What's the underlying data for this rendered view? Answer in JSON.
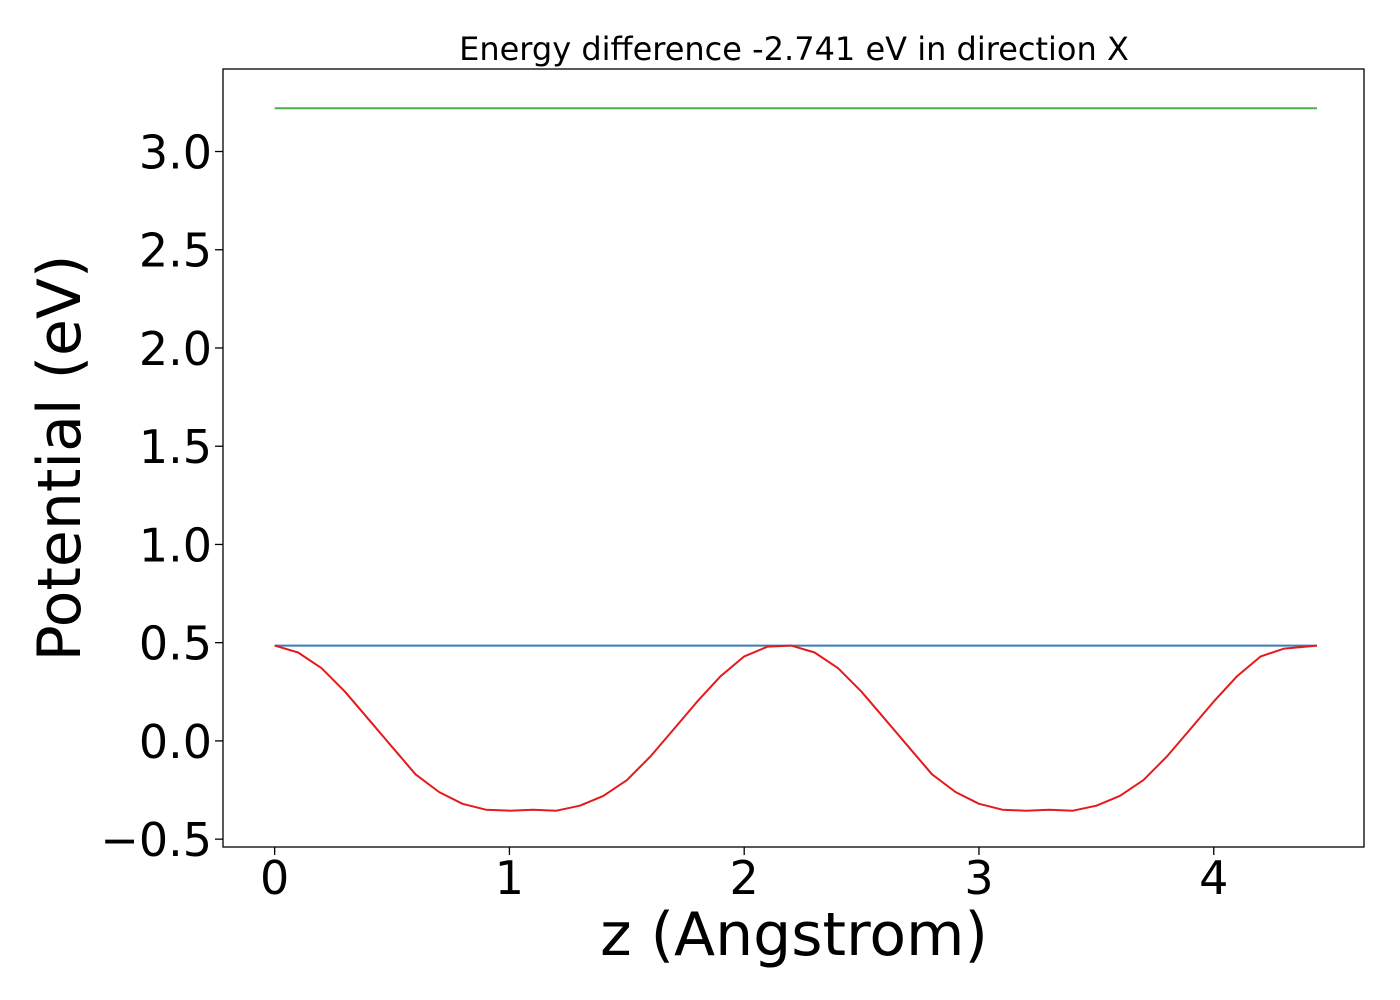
{
  "chart_data": {
    "type": "line",
    "title": "Energy difference -2.741 eV in direction X",
    "xlabel": "z (Angstrom)",
    "ylabel": "Potential (eV)",
    "xlim": [
      -0.22,
      4.64
    ],
    "ylim": [
      -0.54,
      3.42
    ],
    "xticks": [
      0,
      1,
      2,
      3,
      4
    ],
    "xtick_labels": [
      "0",
      "1",
      "2",
      "3",
      "4"
    ],
    "yticks": [
      -0.5,
      0.0,
      0.5,
      1.0,
      1.5,
      2.0,
      2.5,
      3.0
    ],
    "ytick_labels": [
      "−0.5",
      "0.0",
      "0.5",
      "1.0",
      "1.5",
      "2.0",
      "2.5",
      "3.0"
    ],
    "grid": false,
    "series": [
      {
        "color": "#4daf4a",
        "x": [
          0,
          4.44
        ],
        "y": [
          3.22,
          3.22
        ]
      },
      {
        "color": "#377eb8",
        "x": [
          0,
          4.44
        ],
        "y": [
          0.485,
          0.485
        ]
      },
      {
        "color": "#e41a1c",
        "x": [
          0,
          0.1,
          0.2,
          0.3,
          0.4,
          0.5,
          0.6,
          0.7,
          0.8,
          0.9,
          1.0,
          1.1,
          1.2,
          1.3,
          1.4,
          1.5,
          1.6,
          1.7,
          1.8,
          1.9,
          2.0,
          2.1,
          2.2,
          2.3,
          2.4,
          2.5,
          2.6,
          2.7,
          2.8,
          2.9,
          3.0,
          3.1,
          3.2,
          3.3,
          3.4,
          3.5,
          3.6,
          3.7,
          3.8,
          3.9,
          4.0,
          4.1,
          4.2,
          4.3,
          4.44
        ],
        "y": [
          0.485,
          0.45,
          0.37,
          0.25,
          0.11,
          -0.03,
          -0.17,
          -0.26,
          -0.32,
          -0.35,
          -0.355,
          -0.35,
          -0.355,
          -0.33,
          -0.28,
          -0.2,
          -0.08,
          0.06,
          0.2,
          0.33,
          0.43,
          0.48,
          0.485,
          0.45,
          0.37,
          0.25,
          0.11,
          -0.03,
          -0.17,
          -0.26,
          -0.32,
          -0.35,
          -0.355,
          -0.35,
          -0.355,
          -0.33,
          -0.28,
          -0.2,
          -0.08,
          0.06,
          0.2,
          0.33,
          0.43,
          0.47,
          0.485
        ]
      }
    ]
  }
}
